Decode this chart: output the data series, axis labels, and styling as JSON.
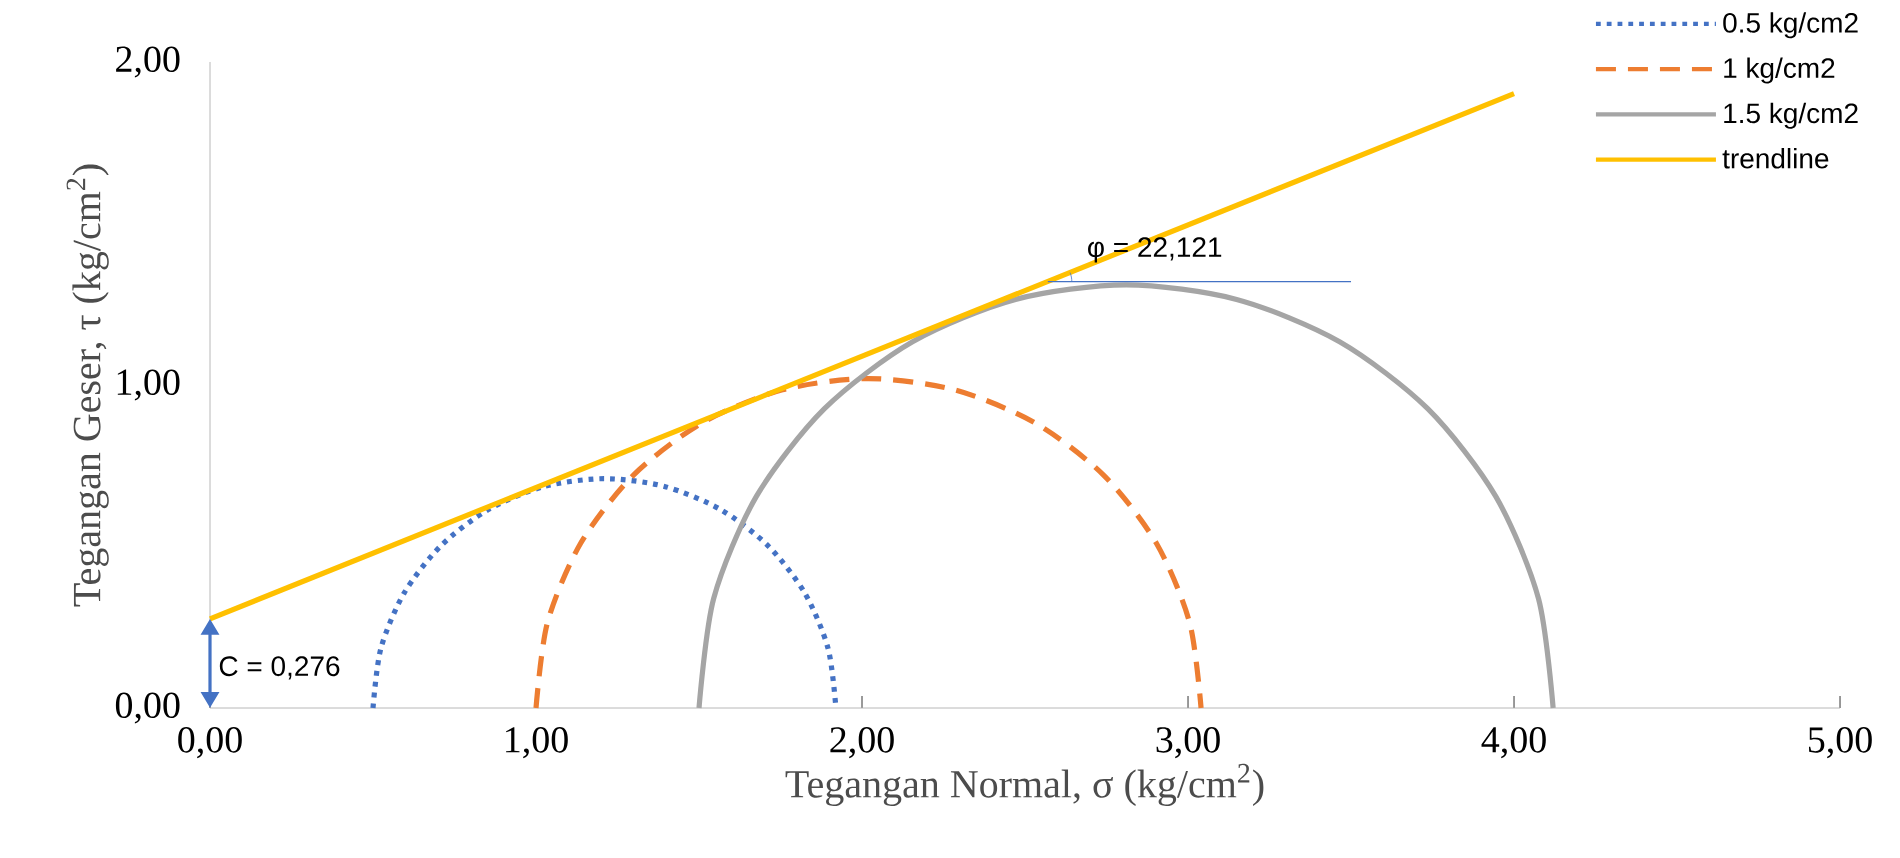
{
  "chart_data": {
    "type": "line",
    "xlabel": "Tegangan Normal, σ (kg/cm$^{2}$)",
    "ylabel": "Tegangan Geser, τ (kg/cm$^{2}$)",
    "xlim": [
      0,
      5
    ],
    "ylim": [
      0,
      2
    ],
    "xticks": [
      {
        "value": 0,
        "label": "0,00"
      },
      {
        "value": 1,
        "label": "1,00"
      },
      {
        "value": 2,
        "label": "2,00"
      },
      {
        "value": 3,
        "label": "3,00"
      },
      {
        "value": 4,
        "label": "4,00"
      },
      {
        "value": 5,
        "label": "5,00"
      }
    ],
    "yticks": [
      {
        "value": 0,
        "label": "0,00"
      },
      {
        "value": 1,
        "label": "1,00"
      },
      {
        "value": 2,
        "label": "2,00"
      }
    ],
    "grid": false,
    "legend": "top right",
    "series": [
      {
        "name": "0.5 kg/cm2",
        "color": "#4472c4",
        "line_style": "dotted",
        "x": [
          0.5,
          0.524,
          0.595,
          0.708,
          0.855,
          1.026,
          1.21,
          1.394,
          1.565,
          1.712,
          1.825,
          1.896,
          1.92
        ],
        "values": [
          0,
          0.184,
          0.355,
          0.502,
          0.615,
          0.686,
          0.71,
          0.686,
          0.615,
          0.502,
          0.355,
          0.184,
          0
        ]
      },
      {
        "name": "1 kg/cm2",
        "color": "#ed7d31",
        "line_style": "dashed",
        "x": [
          1.0,
          1.035,
          1.137,
          1.299,
          1.51,
          1.756,
          2.02,
          2.284,
          2.53,
          2.741,
          2.903,
          3.005,
          3.04
        ],
        "values": [
          0,
          0.264,
          0.51,
          0.721,
          0.883,
          0.985,
          1.02,
          0.985,
          0.883,
          0.721,
          0.51,
          0.264,
          0
        ]
      },
      {
        "name": "1.5 kg/cm2",
        "color": "#a5a5a5",
        "line_style": "solid",
        "x": [
          1.5,
          1.545,
          1.676,
          1.884,
          2.155,
          2.471,
          2.81,
          3.149,
          3.465,
          3.736,
          3.944,
          4.075,
          4.12
        ],
        "values": [
          0,
          0.339,
          0.655,
          0.926,
          1.134,
          1.265,
          1.31,
          1.265,
          1.134,
          0.926,
          0.655,
          0.339,
          0
        ]
      },
      {
        "name": "trendline",
        "color": "#ffc000",
        "line_style": "solid",
        "x": [
          0,
          4.0
        ],
        "values": [
          0.276,
          1.902
        ]
      },
      {
        "color": "#4472c4",
        "line_style": "solid",
        "x": [
          2.57,
          3.5
        ],
        "values": [
          1.32,
          1.32
        ]
      }
    ],
    "annotations": [
      {
        "text": "φ = 22,121",
        "x": 2.57,
        "y": 1.32
      },
      {
        "text": "C = 0,276",
        "x": 0,
        "y": 0.276
      }
    ]
  }
}
